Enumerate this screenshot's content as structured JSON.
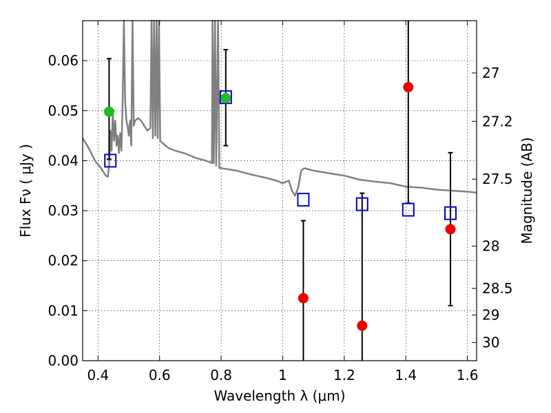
{
  "chart_data": {
    "type": "scatter",
    "xlabel": "Wavelength  λ (μm)",
    "ylabel": "Flux  Fν  ( μJy )",
    "y2label": "Magnitude (AB)",
    "xlim": [
      0.35,
      1.63
    ],
    "ylim": [
      0.0,
      0.068
    ],
    "grid": true,
    "x_ticks": [
      0.4,
      0.6,
      0.8,
      1.0,
      1.2,
      1.4,
      1.6
    ],
    "x_tick_labels": [
      "0.4",
      "0.6",
      "0.8",
      "1",
      "1.2",
      "1.4",
      "1.6"
    ],
    "y_ticks": [
      0.0,
      0.01,
      0.02,
      0.03,
      0.04,
      0.05,
      0.06
    ],
    "y_tick_labels": [
      "0.00",
      "0.01",
      "0.02",
      "0.03",
      "0.04",
      "0.05",
      "0.06"
    ],
    "right_ticks": [
      {
        "label": "27",
        "mag": 27.0
      },
      {
        "label": "27.2",
        "mag": 27.2
      },
      {
        "label": "27.5",
        "mag": 27.5
      },
      {
        "label": "28",
        "mag": 28.0
      },
      {
        "label": "28.5",
        "mag": 28.5
      },
      {
        "label": "29",
        "mag": 29.0
      },
      {
        "label": "30",
        "mag": 30.0
      }
    ],
    "model_spectrum": {
      "color": "#808080",
      "points": [
        [
          0.35,
          0.0445
        ],
        [
          0.37,
          0.0425
        ],
        [
          0.39,
          0.04
        ],
        [
          0.41,
          0.0385
        ],
        [
          0.425,
          0.037
        ],
        [
          0.432,
          0.0368
        ],
        [
          0.436,
          0.039
        ],
        [
          0.44,
          0.046
        ],
        [
          0.444,
          0.042
        ],
        [
          0.448,
          0.05
        ],
        [
          0.452,
          0.044
        ],
        [
          0.456,
          0.048
        ],
        [
          0.46,
          0.043
        ],
        [
          0.464,
          0.045
        ],
        [
          0.468,
          0.0415
        ],
        [
          0.472,
          0.0455
        ],
        [
          0.476,
          0.042
        ],
        [
          0.48,
          0.052
        ],
        [
          0.484,
          0.07
        ],
        [
          0.488,
          0.052
        ],
        [
          0.492,
          0.048
        ],
        [
          0.496,
          0.047
        ],
        [
          0.5,
          0.045
        ],
        [
          0.504,
          0.048
        ],
        [
          0.508,
          0.043
        ],
        [
          0.512,
          0.07
        ],
        [
          0.516,
          0.047
        ],
        [
          0.52,
          0.048
        ],
        [
          0.53,
          0.0485
        ],
        [
          0.54,
          0.048
        ],
        [
          0.55,
          0.047
        ],
        [
          0.56,
          0.046
        ],
        [
          0.57,
          0.0465
        ],
        [
          0.574,
          0.07
        ],
        [
          0.578,
          0.0445
        ],
        [
          0.582,
          0.07
        ],
        [
          0.586,
          0.045
        ],
        [
          0.59,
          0.07
        ],
        [
          0.594,
          0.0445
        ],
        [
          0.598,
          0.07
        ],
        [
          0.602,
          0.044
        ],
        [
          0.61,
          0.0435
        ],
        [
          0.63,
          0.0425
        ],
        [
          0.65,
          0.042
        ],
        [
          0.68,
          0.0415
        ],
        [
          0.7,
          0.041
        ],
        [
          0.72,
          0.0405
        ],
        [
          0.75,
          0.04
        ],
        [
          0.77,
          0.0395
        ],
        [
          0.772,
          0.07
        ],
        [
          0.776,
          0.0395
        ],
        [
          0.78,
          0.07
        ],
        [
          0.784,
          0.039
        ],
        [
          0.79,
          0.07
        ],
        [
          0.794,
          0.0385
        ],
        [
          0.8,
          0.0385
        ],
        [
          0.85,
          0.038
        ],
        [
          0.9,
          0.0372
        ],
        [
          0.95,
          0.0365
        ],
        [
          0.98,
          0.036
        ],
        [
          1.0,
          0.0355
        ],
        [
          1.02,
          0.036
        ],
        [
          1.03,
          0.034
        ],
        [
          1.04,
          0.033
        ],
        [
          1.05,
          0.0345
        ],
        [
          1.06,
          0.038
        ],
        [
          1.07,
          0.0385
        ],
        [
          1.1,
          0.038
        ],
        [
          1.15,
          0.0375
        ],
        [
          1.2,
          0.037
        ],
        [
          1.25,
          0.0362
        ],
        [
          1.3,
          0.0358
        ],
        [
          1.35,
          0.0355
        ],
        [
          1.4,
          0.0348
        ],
        [
          1.45,
          0.0346
        ],
        [
          1.5,
          0.0342
        ],
        [
          1.55,
          0.034
        ],
        [
          1.6,
          0.0338
        ],
        [
          1.63,
          0.0336
        ]
      ]
    },
    "series": [
      {
        "marker": "open-square",
        "color": "#0000cc",
        "points": [
          {
            "x": 0.44,
            "y": 0.04
          },
          {
            "x": 0.815,
            "y": 0.0527
          },
          {
            "x": 1.067,
            "y": 0.0322
          },
          {
            "x": 1.258,
            "y": 0.0313
          },
          {
            "x": 1.408,
            "y": 0.0302
          },
          {
            "x": 1.545,
            "y": 0.0295
          }
        ]
      },
      {
        "marker": "filled-circle",
        "color": "#22bb22",
        "points": [
          {
            "x": 0.436,
            "y": 0.0498,
            "err_low": 0.0403,
            "err_high": 0.0604
          },
          {
            "x": 0.815,
            "y": 0.0525,
            "err_low": 0.043,
            "err_high": 0.0622
          }
        ]
      },
      {
        "marker": "filled-circle",
        "color": "#ee0000",
        "points": [
          {
            "x": 1.067,
            "y": 0.0125,
            "err_low": 0.0,
            "err_high": 0.028
          },
          {
            "x": 1.258,
            "y": 0.007,
            "err_low": 0.0,
            "err_high": 0.0335
          },
          {
            "x": 1.408,
            "y": 0.0547,
            "err_low": 0.0315,
            "err_high": 0.068
          },
          {
            "x": 1.545,
            "y": 0.0263,
            "err_low": 0.011,
            "err_high": 0.0416
          }
        ]
      }
    ]
  }
}
